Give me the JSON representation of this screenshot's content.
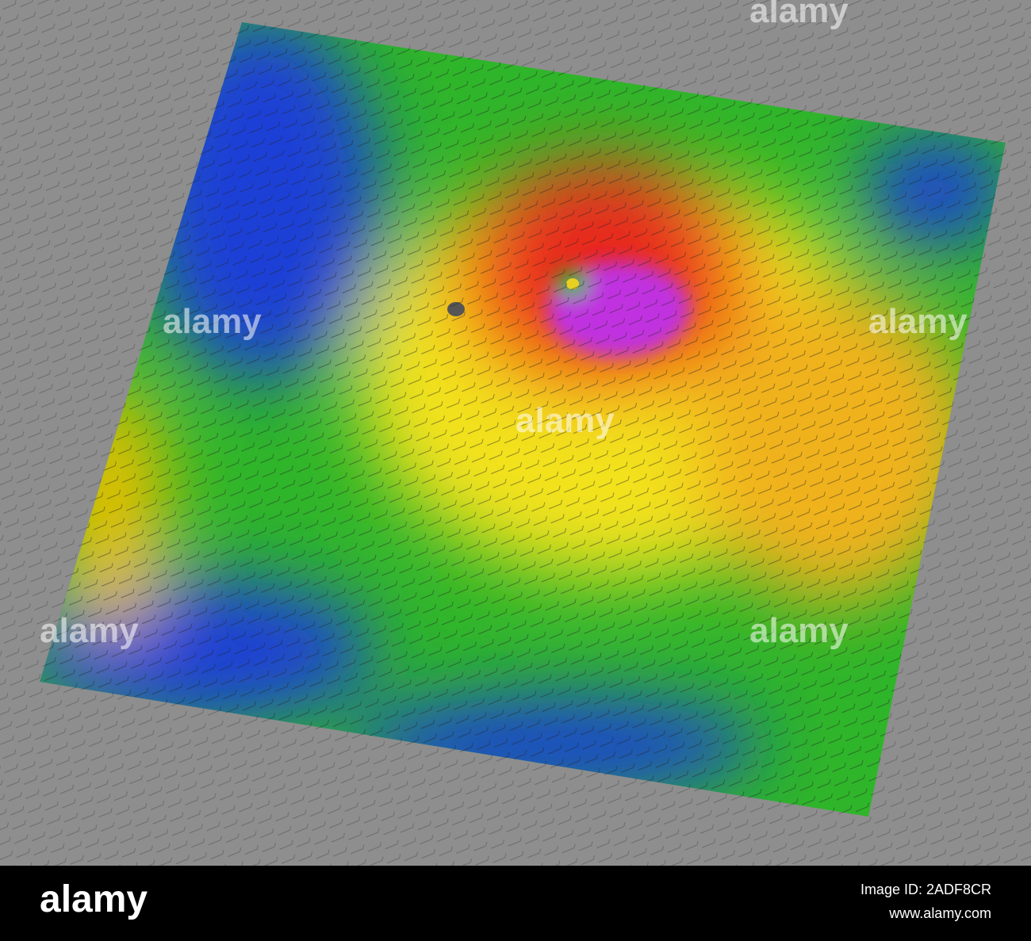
{
  "image": {
    "watermark": "alamy"
  },
  "footer": {
    "logo": "alamy",
    "image_id": "Image ID: 2ADF8CR",
    "url": "www.alamy.com"
  }
}
